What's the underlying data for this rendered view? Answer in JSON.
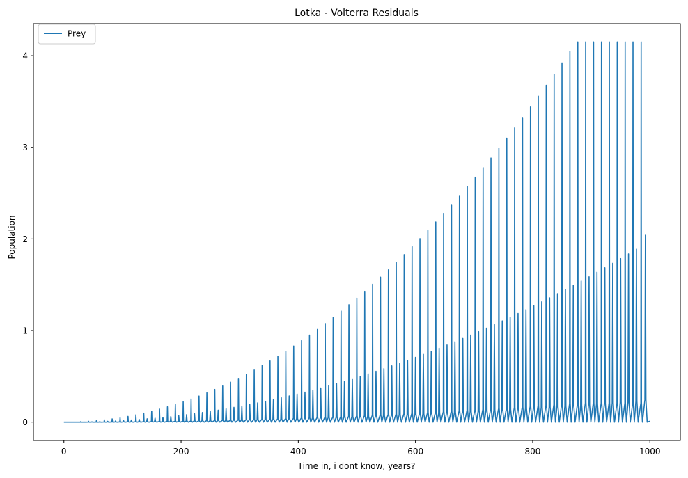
{
  "chart_data": {
    "type": "line",
    "title": "Lotka - Volterra Residuals",
    "xlabel": "Time in, i dont know, years?",
    "ylabel": "Population",
    "xlim": [
      -52,
      1052
    ],
    "ylim": [
      -0.2,
      4.35
    ],
    "xticks": [
      0,
      200,
      400,
      600,
      800,
      1000
    ],
    "xtick_labels": [
      "0",
      "200",
      "400",
      "600",
      "800",
      "1000"
    ],
    "yticks": [
      0,
      1,
      2,
      3,
      4
    ],
    "ytick_labels": [
      "0",
      "1",
      "2",
      "3",
      "4"
    ],
    "grid": false,
    "legend": {
      "position": "top-left",
      "entries": [
        "Prey"
      ]
    },
    "series": [
      {
        "name": "Prey",
        "color": "#1f77b4",
        "pattern": "periodic spikes with growing amplitude; primary and secondary peak per cycle",
        "x_range": [
          0,
          1000
        ],
        "baseline": 0.0,
        "cycle_start_x": [
          0,
          13.5,
          26.9,
          40.4,
          53.9,
          67.4,
          80.8,
          94.3,
          107.8,
          121.2,
          134.7,
          148.2,
          161.6,
          175.1,
          188.6,
          202.0,
          215.5,
          229.0,
          242.4,
          255.9,
          269.4,
          282.8,
          296.3,
          309.8,
          323.2,
          336.7,
          350.2,
          363.6,
          377.1,
          390.6,
          404.0,
          417.5,
          431.0,
          444.4,
          457.9,
          471.4,
          484.8,
          498.3,
          511.8,
          525.2,
          538.7,
          552.2,
          565.6,
          579.1,
          592.6,
          606.0,
          619.5,
          633.0,
          646.4,
          659.9,
          673.4,
          686.8,
          700.3,
          713.8,
          727.2,
          740.7,
          754.2,
          767.6,
          781.1,
          794.6,
          808.0,
          821.5,
          835.0,
          848.4,
          861.9,
          875.4,
          888.8,
          902.3,
          915.8,
          929.2,
          942.7,
          956.2,
          969.6,
          983.1
        ],
        "primary_peaks": [
          0.0,
          0.0,
          0.004,
          0.009,
          0.016,
          0.025,
          0.035,
          0.048,
          0.063,
          0.08,
          0.099,
          0.12,
          0.142,
          0.167,
          0.194,
          0.222,
          0.253,
          0.285,
          0.32,
          0.357,
          0.395,
          0.436,
          0.478,
          0.523,
          0.569,
          0.618,
          0.668,
          0.72,
          0.775,
          0.831,
          0.89,
          0.95,
          1.012,
          1.077,
          1.143,
          1.212,
          1.282,
          1.354,
          1.428,
          1.505,
          1.583,
          1.663,
          1.745,
          1.829,
          1.915,
          2.003,
          2.093,
          2.185,
          2.279,
          2.375,
          2.473,
          2.572,
          2.674,
          2.778,
          2.883,
          2.991,
          3.1,
          3.212,
          3.325,
          3.44,
          3.558,
          3.677,
          3.798,
          3.921,
          4.046,
          4.15,
          4.15,
          4.15,
          4.15,
          4.15,
          4.15,
          4.15,
          4.15,
          4.15
        ],
        "secondary_peaks": [
          0.0,
          0.0,
          0.001,
          0.003,
          0.006,
          0.009,
          0.013,
          0.018,
          0.023,
          0.029,
          0.036,
          0.044,
          0.052,
          0.061,
          0.071,
          0.082,
          0.093,
          0.105,
          0.118,
          0.131,
          0.146,
          0.161,
          0.176,
          0.193,
          0.21,
          0.228,
          0.246,
          0.266,
          0.286,
          0.307,
          0.328,
          0.35,
          0.373,
          0.397,
          0.422,
          0.447,
          0.473,
          0.5,
          0.527,
          0.555,
          0.584,
          0.614,
          0.644,
          0.675,
          0.707,
          0.74,
          0.773,
          0.807,
          0.842,
          0.877,
          0.913,
          0.95,
          0.987,
          1.026,
          1.065,
          1.105,
          1.145,
          1.186,
          1.228,
          1.27,
          1.313,
          1.357,
          1.402,
          1.447,
          1.493,
          1.54,
          1.587,
          1.636,
          1.685,
          1.734,
          1.785,
          1.836,
          1.888,
          2.04
        ],
        "end_value": 0.01
      }
    ]
  }
}
